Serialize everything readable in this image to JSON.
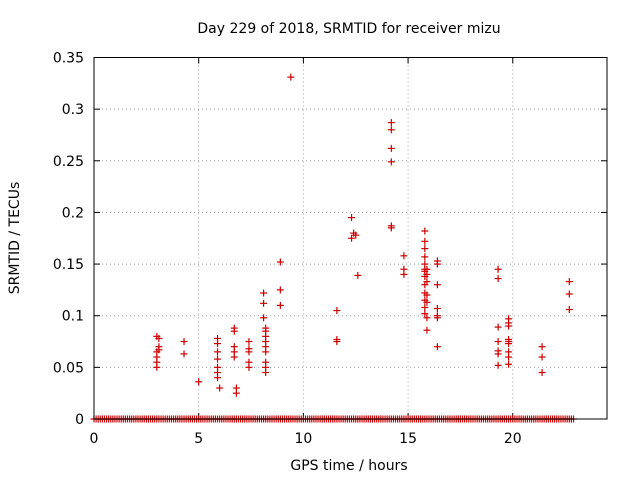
{
  "chart_data": {
    "type": "scatter",
    "title": "Day 229 of 2018, SRMTID for receiver mizu",
    "xlabel": "GPS time / hours",
    "ylabel": "SRMTID / TECUs",
    "xlim": [
      0,
      24.5
    ],
    "ylim": [
      0,
      0.35
    ],
    "grid": true,
    "x_ticks": [
      0,
      5,
      10,
      15,
      20
    ],
    "x_tick_labels": [
      "0",
      "5",
      "10",
      "15",
      "20"
    ],
    "y_ticks": [
      0,
      0.05,
      0.1,
      0.15,
      0.2,
      0.25,
      0.3,
      0.35
    ],
    "y_tick_labels": [
      "0",
      "0.05",
      "0.1",
      "0.15",
      "0.2",
      "0.25",
      "0.3",
      "0.35"
    ],
    "marker": "+",
    "color": "#cc0000",
    "baseline": {
      "y": 0,
      "x_start": 0,
      "x_end": 22.9,
      "x_step": 0.1
    },
    "points": [
      [
        3.0,
        0.08
      ],
      [
        3.0,
        0.065
      ],
      [
        3.0,
        0.06
      ],
      [
        3.0,
        0.055
      ],
      [
        3.0,
        0.05
      ],
      [
        3.1,
        0.078
      ],
      [
        3.1,
        0.07
      ],
      [
        3.1,
        0.067
      ],
      [
        4.3,
        0.075
      ],
      [
        4.3,
        0.063
      ],
      [
        5.0,
        0.036
      ],
      [
        5.9,
        0.078
      ],
      [
        5.9,
        0.073
      ],
      [
        5.9,
        0.065
      ],
      [
        5.9,
        0.058
      ],
      [
        5.9,
        0.05
      ],
      [
        5.9,
        0.045
      ],
      [
        5.9,
        0.04
      ],
      [
        6.0,
        0.03
      ],
      [
        6.7,
        0.088
      ],
      [
        6.7,
        0.085
      ],
      [
        6.7,
        0.07
      ],
      [
        6.7,
        0.065
      ],
      [
        6.7,
        0.06
      ],
      [
        6.8,
        0.03
      ],
      [
        6.8,
        0.025
      ],
      [
        7.4,
        0.075
      ],
      [
        7.4,
        0.068
      ],
      [
        7.4,
        0.065
      ],
      [
        7.4,
        0.055
      ],
      [
        7.4,
        0.05
      ],
      [
        8.1,
        0.122
      ],
      [
        8.1,
        0.112
      ],
      [
        8.1,
        0.098
      ],
      [
        8.2,
        0.088
      ],
      [
        8.2,
        0.085
      ],
      [
        8.2,
        0.08
      ],
      [
        8.2,
        0.075
      ],
      [
        8.2,
        0.07
      ],
      [
        8.2,
        0.065
      ],
      [
        8.2,
        0.055
      ],
      [
        8.2,
        0.05
      ],
      [
        8.2,
        0.045
      ],
      [
        8.9,
        0.152
      ],
      [
        8.9,
        0.125
      ],
      [
        8.9,
        0.11
      ],
      [
        9.4,
        0.331
      ],
      [
        11.6,
        0.105
      ],
      [
        11.6,
        0.077
      ],
      [
        11.6,
        0.075
      ],
      [
        12.3,
        0.195
      ],
      [
        12.3,
        0.175
      ],
      [
        12.4,
        0.18
      ],
      [
        12.5,
        0.178
      ],
      [
        12.6,
        0.139
      ],
      [
        14.2,
        0.287
      ],
      [
        14.2,
        0.28
      ],
      [
        14.2,
        0.262
      ],
      [
        14.2,
        0.249
      ],
      [
        14.2,
        0.187
      ],
      [
        14.2,
        0.185
      ],
      [
        14.8,
        0.158
      ],
      [
        14.8,
        0.145
      ],
      [
        14.8,
        0.14
      ],
      [
        15.8,
        0.182
      ],
      [
        15.8,
        0.172
      ],
      [
        15.8,
        0.165
      ],
      [
        15.8,
        0.157
      ],
      [
        15.8,
        0.15
      ],
      [
        15.8,
        0.145
      ],
      [
        15.8,
        0.143
      ],
      [
        15.8,
        0.138
      ],
      [
        15.8,
        0.13
      ],
      [
        15.8,
        0.122
      ],
      [
        15.8,
        0.115
      ],
      [
        15.8,
        0.108
      ],
      [
        15.8,
        0.102
      ],
      [
        15.9,
        0.145
      ],
      [
        15.9,
        0.14
      ],
      [
        15.9,
        0.133
      ],
      [
        15.9,
        0.12
      ],
      [
        15.9,
        0.113
      ],
      [
        15.9,
        0.098
      ],
      [
        15.9,
        0.086
      ],
      [
        16.4,
        0.153
      ],
      [
        16.4,
        0.15
      ],
      [
        16.4,
        0.13
      ],
      [
        16.4,
        0.107
      ],
      [
        16.4,
        0.1
      ],
      [
        16.4,
        0.098
      ],
      [
        16.4,
        0.07
      ],
      [
        19.3,
        0.145
      ],
      [
        19.3,
        0.136
      ],
      [
        19.3,
        0.089
      ],
      [
        19.3,
        0.075
      ],
      [
        19.3,
        0.066
      ],
      [
        19.3,
        0.063
      ],
      [
        19.3,
        0.052
      ],
      [
        19.8,
        0.097
      ],
      [
        19.8,
        0.093
      ],
      [
        19.8,
        0.09
      ],
      [
        19.8,
        0.077
      ],
      [
        19.8,
        0.075
      ],
      [
        19.8,
        0.073
      ],
      [
        19.8,
        0.065
      ],
      [
        19.8,
        0.06
      ],
      [
        19.8,
        0.053
      ],
      [
        21.4,
        0.07
      ],
      [
        21.4,
        0.06
      ],
      [
        21.4,
        0.045
      ],
      [
        22.7,
        0.133
      ],
      [
        22.7,
        0.121
      ],
      [
        22.7,
        0.106
      ]
    ]
  }
}
